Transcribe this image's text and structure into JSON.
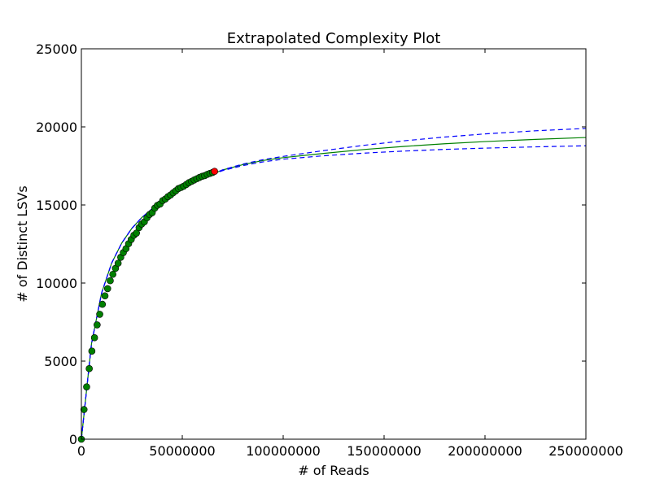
{
  "chart_data": {
    "type": "line",
    "title": "Extrapolated Complexity Plot",
    "xlabel": "# of Reads",
    "ylabel": "# of Distinct LSVs",
    "xlim": [
      0,
      250000000
    ],
    "ylim": [
      0,
      25000
    ],
    "x_ticks": [
      0,
      50000000,
      100000000,
      150000000,
      200000000,
      250000000
    ],
    "x_tick_labels": [
      "0",
      "50000000",
      "100000000",
      "150000000",
      "200000000",
      "250000000"
    ],
    "y_ticks": [
      0,
      5000,
      10000,
      15000,
      20000,
      25000
    ],
    "y_tick_labels": [
      "0",
      "5000",
      "10000",
      "15000",
      "20000",
      "25000"
    ],
    "grid": false,
    "legend": "none",
    "colors": {
      "observed": "#008000",
      "last_observed": "#ff0000",
      "fit": "#008000",
      "ci": "#0000ff"
    },
    "series": [
      {
        "kind": "scatter",
        "marker_color": "#008000",
        "x": [
          0,
          1300000,
          2600000,
          3900000,
          5200000,
          6500000,
          7800000,
          9100000,
          10400000,
          11700000,
          13000000,
          14300000,
          15600000,
          16900000,
          18200000,
          19500000,
          20800000,
          22100000,
          23400000,
          24700000,
          26000000,
          27300000,
          28600000,
          29900000,
          31200000,
          32500000,
          33800000,
          35100000,
          36400000,
          37700000,
          39000000,
          40300000,
          41600000,
          42900000,
          44200000,
          45500000,
          46800000,
          48100000,
          49400000,
          50700000,
          52000000,
          53300000,
          54600000,
          55900000,
          57200000,
          58500000,
          59800000,
          61100000,
          62400000,
          63700000,
          65000000
        ],
        "y": [
          0,
          1900,
          3350,
          4520,
          5640,
          6500,
          7320,
          8000,
          8640,
          9180,
          9640,
          10150,
          10560,
          10940,
          11270,
          11650,
          11950,
          12200,
          12520,
          12790,
          13060,
          13200,
          13550,
          13780,
          13920,
          14180,
          14390,
          14510,
          14800,
          14980,
          15060,
          15280,
          15380,
          15530,
          15640,
          15780,
          15910,
          16050,
          16120,
          16200,
          16310,
          16430,
          16510,
          16600,
          16680,
          16760,
          16830,
          16880,
          16960,
          17020,
          17080
        ]
      },
      {
        "kind": "scatter",
        "marker_color": "#ff0000",
        "x": [
          66000000
        ],
        "y": [
          17150
        ]
      },
      {
        "kind": "line",
        "style": "solid",
        "color": "#008000",
        "x": [
          0,
          5000000,
          10000000,
          15000000,
          20000000,
          25000000,
          30000000,
          40000000,
          50000000,
          60000000,
          70000000,
          80000000,
          90000000,
          100000000,
          120000000,
          140000000,
          160000000,
          180000000,
          200000000,
          225000000,
          250000000
        ],
        "y": [
          0,
          6100,
          9350,
          11280,
          12560,
          13500,
          14200,
          15300,
          16080,
          16720,
          17240,
          17580,
          17850,
          18030,
          18300,
          18550,
          18750,
          18920,
          19060,
          19200,
          19320
        ]
      },
      {
        "kind": "line",
        "style": "dashed",
        "color": "#0000ff",
        "x": [
          0,
          5000000,
          10000000,
          15000000,
          20000000,
          25000000,
          30000000,
          40000000,
          50000000,
          60000000,
          70000000,
          80000000,
          90000000,
          100000000,
          120000000,
          140000000,
          160000000,
          180000000,
          200000000,
          225000000,
          250000000
        ],
        "y": [
          0,
          6100,
          9350,
          11280,
          12560,
          13500,
          14200,
          15300,
          16080,
          16720,
          17250,
          17620,
          17900,
          18110,
          18480,
          18820,
          19110,
          19350,
          19550,
          19750,
          19900
        ]
      },
      {
        "kind": "line",
        "style": "dashed",
        "color": "#0000ff",
        "x": [
          0,
          5000000,
          10000000,
          15000000,
          20000000,
          25000000,
          30000000,
          40000000,
          50000000,
          60000000,
          70000000,
          80000000,
          90000000,
          100000000,
          120000000,
          140000000,
          160000000,
          180000000,
          200000000,
          225000000,
          250000000
        ],
        "y": [
          0,
          6100,
          9350,
          11280,
          12560,
          13500,
          14200,
          15300,
          16080,
          16720,
          17200,
          17520,
          17760,
          17930,
          18150,
          18320,
          18450,
          18560,
          18640,
          18720,
          18790
        ]
      }
    ]
  }
}
